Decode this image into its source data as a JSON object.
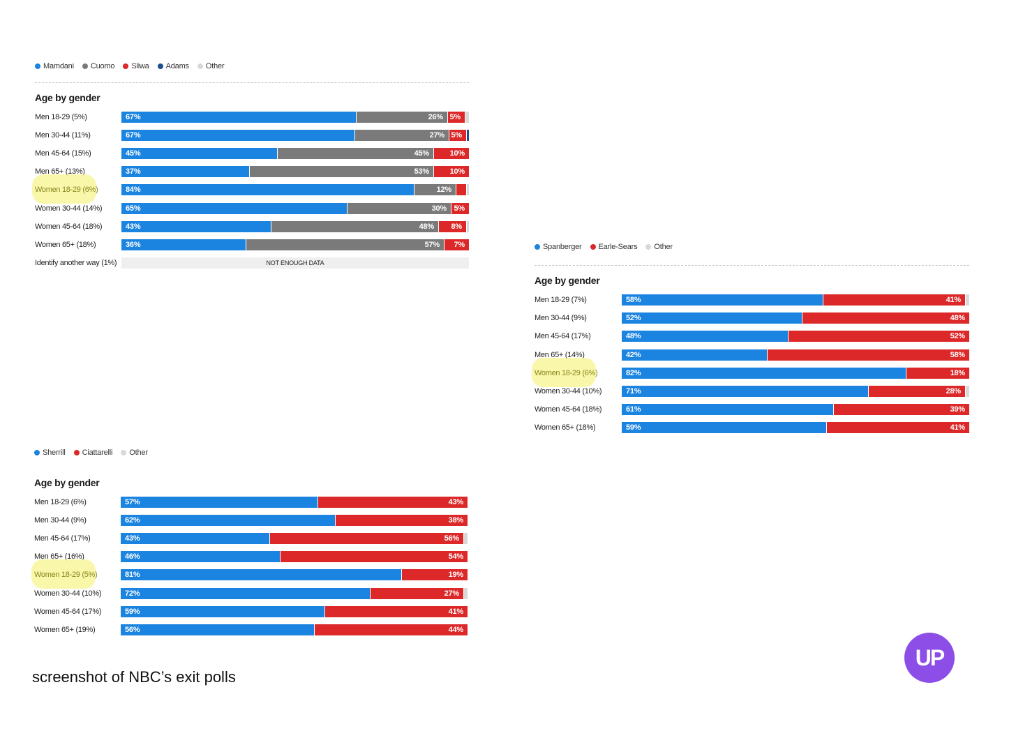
{
  "colors": {
    "Mamdani": "#1b84e0",
    "Cuomo": "#7a7a7a",
    "Sliwa": "#dc2828",
    "Adams": "#1b4f91",
    "Other": "#d9d9d9",
    "Spanberger": "#1b84e0",
    "Earle-Sears": "#dc2828",
    "Sherrill": "#1b84e0",
    "Ciattarelli": "#dc2828"
  },
  "chart_data": [
    {
      "type": "bar",
      "orientation": "horizontal",
      "stacked": true,
      "title": "Age by gender",
      "legend": [
        "Mamdani",
        "Cuomo",
        "Sliwa",
        "Adams",
        "Other"
      ],
      "rows": [
        {
          "label": "Men 18-29 (5%)",
          "values": {
            "Mamdani": 67,
            "Cuomo": 26,
            "Sliwa": 5,
            "Adams": 0,
            "Other": 1
          },
          "labels": {
            "Mamdani": "67%",
            "Cuomo": "26%",
            "Sliwa": "5%"
          }
        },
        {
          "label": "Men 30-44 (11%)",
          "values": {
            "Mamdani": 67,
            "Cuomo": 27,
            "Sliwa": 5,
            "Adams": 0.6,
            "Other": 0
          },
          "labels": {
            "Mamdani": "67%",
            "Cuomo": "27%",
            "Sliwa": "5%"
          }
        },
        {
          "label": "Men 45-64 (15%)",
          "values": {
            "Mamdani": 45,
            "Cuomo": 45,
            "Sliwa": 10,
            "Adams": 0,
            "Other": 0
          },
          "labels": {
            "Mamdani": "45%",
            "Cuomo": "45%",
            "Sliwa": "10%"
          }
        },
        {
          "label": "Men 65+ (13%)",
          "values": {
            "Mamdani": 37,
            "Cuomo": 53,
            "Sliwa": 10,
            "Adams": 0,
            "Other": 0
          },
          "labels": {
            "Mamdani": "37%",
            "Cuomo": "53%",
            "Sliwa": "10%"
          }
        },
        {
          "label": "Women 18-29 (6%)",
          "highlight": true,
          "values": {
            "Mamdani": 84,
            "Cuomo": 12,
            "Sliwa": 3,
            "Adams": 0,
            "Other": 0.6
          },
          "labels": {
            "Mamdani": "84%",
            "Cuomo": "12%"
          }
        },
        {
          "label": "Women 30-44 (14%)",
          "values": {
            "Mamdani": 65,
            "Cuomo": 30,
            "Sliwa": 5,
            "Adams": 0,
            "Other": 0
          },
          "labels": {
            "Mamdani": "65%",
            "Cuomo": "30%",
            "Sliwa": "5%"
          }
        },
        {
          "label": "Women 45-64 (18%)",
          "values": {
            "Mamdani": 43,
            "Cuomo": 48,
            "Sliwa": 8,
            "Adams": 0,
            "Other": 0.6
          },
          "labels": {
            "Mamdani": "43%",
            "Cuomo": "48%",
            "Sliwa": "8%"
          }
        },
        {
          "label": "Women 65+ (18%)",
          "values": {
            "Mamdani": 36,
            "Cuomo": 57,
            "Sliwa": 7,
            "Adams": 0,
            "Other": 0
          },
          "labels": {
            "Mamdani": "36%",
            "Cuomo": "57%",
            "Sliwa": "7%"
          }
        },
        {
          "label": "Identify another way (1%)",
          "no_data": "NOT ENOUGH DATA"
        }
      ]
    },
    {
      "type": "bar",
      "orientation": "horizontal",
      "stacked": true,
      "title": "Age by gender",
      "legend": [
        "Spanberger",
        "Earle-Sears",
        "Other"
      ],
      "rows": [
        {
          "label": "Men 18-29 (7%)",
          "values": {
            "Spanberger": 58,
            "Earle-Sears": 41,
            "Other": 1
          },
          "labels": {
            "Spanberger": "58%",
            "Earle-Sears": "41%"
          }
        },
        {
          "label": "Men 30-44 (9%)",
          "values": {
            "Spanberger": 52,
            "Earle-Sears": 48,
            "Other": 0
          },
          "labels": {
            "Spanberger": "52%",
            "Earle-Sears": "48%"
          }
        },
        {
          "label": "Men 45-64 (17%)",
          "values": {
            "Spanberger": 48,
            "Earle-Sears": 52,
            "Other": 0
          },
          "labels": {
            "Spanberger": "48%",
            "Earle-Sears": "52%"
          }
        },
        {
          "label": "Men 65+ (14%)",
          "values": {
            "Spanberger": 42,
            "Earle-Sears": 58,
            "Other": 0
          },
          "labels": {
            "Spanberger": "42%",
            "Earle-Sears": "58%"
          }
        },
        {
          "label": "Women 18-29 (6%)",
          "highlight": true,
          "values": {
            "Spanberger": 82,
            "Earle-Sears": 18,
            "Other": 0
          },
          "labels": {
            "Spanberger": "82%",
            "Earle-Sears": "18%"
          }
        },
        {
          "label": "Women 30-44 (10%)",
          "values": {
            "Spanberger": 71,
            "Earle-Sears": 28,
            "Other": 1
          },
          "labels": {
            "Spanberger": "71%",
            "Earle-Sears": "28%"
          }
        },
        {
          "label": "Women 45-64 (18%)",
          "values": {
            "Spanberger": 61,
            "Earle-Sears": 39,
            "Other": 0
          },
          "labels": {
            "Spanberger": "61%",
            "Earle-Sears": "39%"
          }
        },
        {
          "label": "Women 65+ (18%)",
          "values": {
            "Spanberger": 59,
            "Earle-Sears": 41,
            "Other": 0
          },
          "labels": {
            "Spanberger": "59%",
            "Earle-Sears": "41%"
          }
        }
      ]
    },
    {
      "type": "bar",
      "orientation": "horizontal",
      "stacked": true,
      "title": "Age by gender",
      "legend": [
        "Sherrill",
        "Ciattarelli",
        "Other"
      ],
      "rows": [
        {
          "label": "Men 18-29 (6%)",
          "values": {
            "Sherrill": 57,
            "Ciattarelli": 43,
            "Other": 0
          },
          "labels": {
            "Sherrill": "57%",
            "Ciattarelli": "43%"
          }
        },
        {
          "label": "Men 30-44 (9%)",
          "values": {
            "Sherrill": 62,
            "Ciattarelli": 38,
            "Other": 0
          },
          "labels": {
            "Sherrill": "62%",
            "Ciattarelli": "38%"
          }
        },
        {
          "label": "Men 45-64 (17%)",
          "values": {
            "Sherrill": 43,
            "Ciattarelli": 56,
            "Other": 1
          },
          "labels": {
            "Sherrill": "43%",
            "Ciattarelli": "56%"
          }
        },
        {
          "label": "Men 65+ (16%)",
          "values": {
            "Sherrill": 46,
            "Ciattarelli": 54,
            "Other": 0
          },
          "labels": {
            "Sherrill": "46%",
            "Ciattarelli": "54%"
          }
        },
        {
          "label": "Women 18-29 (5%)",
          "highlight": true,
          "values": {
            "Sherrill": 81,
            "Ciattarelli": 19,
            "Other": 0
          },
          "labels": {
            "Sherrill": "81%",
            "Ciattarelli": "19%"
          }
        },
        {
          "label": "Women 30-44 (10%)",
          "values": {
            "Sherrill": 72,
            "Ciattarelli": 27,
            "Other": 1
          },
          "labels": {
            "Sherrill": "72%",
            "Ciattarelli": "27%"
          }
        },
        {
          "label": "Women 45-64 (17%)",
          "values": {
            "Sherrill": 59,
            "Ciattarelli": 41,
            "Other": 0
          },
          "labels": {
            "Sherrill": "59%",
            "Ciattarelli": "41%"
          }
        },
        {
          "label": "Women 65+ (19%)",
          "values": {
            "Sherrill": 56,
            "Ciattarelli": 44,
            "Other": 0
          },
          "labels": {
            "Sherrill": "56%",
            "Ciattarelli": "44%"
          }
        }
      ]
    }
  ],
  "caption": "screenshot of NBC’s exit polls",
  "logo": {
    "text": "UP",
    "color": "#8d4ee8"
  }
}
